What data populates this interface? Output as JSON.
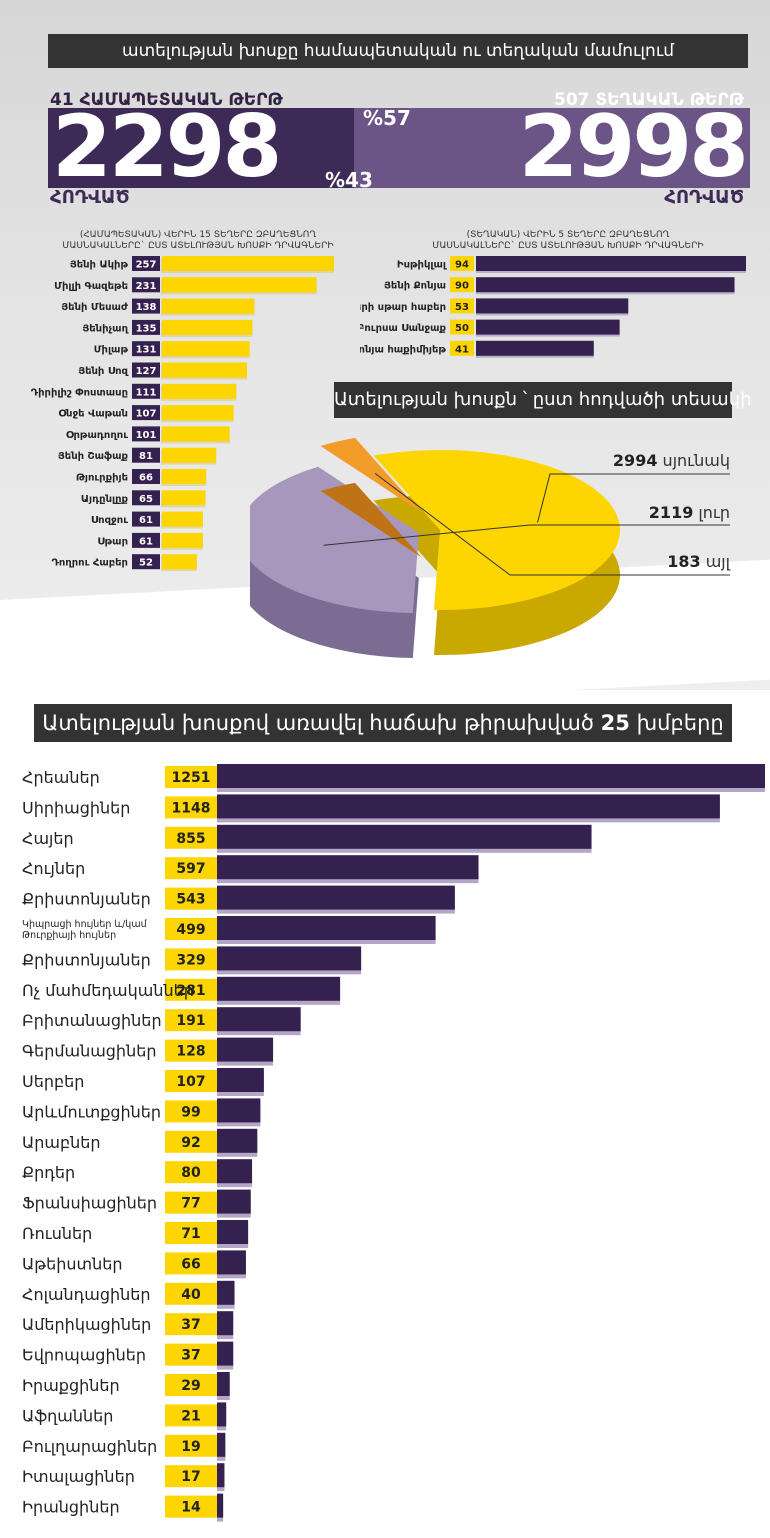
{
  "header": {
    "title": "ատելության խոսքը համապետական ու տեղական մամուլում"
  },
  "national": {
    "count_label": "41 ՀԱՄԱՊԵՏԱԿԱՆ ԹԵՐԹ",
    "total": "2298",
    "unit": "ՀՈԴՎԱԾ",
    "percent": "%43",
    "subtitle_line1": "(ՀԱՄԱՊԵՏԱԿԱՆ) ՎԵՐԻՆ 15 ՏԵՂԵՐԸ ԶԲԱՂԵՑՆՈՂ",
    "subtitle_line2": "ՄԱՍՆԱԿԱԼՆԵՐԸ` ԸՍՏ ԱՏԵԼՈՒԹՅԱՆ ԽՈՍՔԻ ԴՐՎԱԳՆԵՐԻ"
  },
  "local": {
    "count_label": "507 ՏԵՂԱԿԱՆ ԹԵՐԹ",
    "total": "2998",
    "unit": "ՀՈԴՎԱԾ",
    "percent": "%57",
    "subtitle_line1": "(ՏԵՂԱԿԱՆ) ՎԵՐԻՆ 5 ՏԵՂԵՐԸ ԶԲԱՂԵՑՆՈՂ",
    "subtitle_line2": "ՄԱՍՆԱԿԱԼՆԵՐԸ` ԸՍՏ ԱՏԵԼՈՒԹՅԱՆ ԽՈՍՔԻ ԴՐՎԱԳՆԵՐԻ"
  },
  "pie_section": {
    "title": "Ատելության խոսքն ՝ ըստ հոդվածի տեսակի"
  },
  "groups_section": {
    "title_prefix": "Ատելության խոսքով առավել հաճախ թիրախված",
    "title_number": "25",
    "title_suffix": "խմբերը"
  },
  "colors": {
    "yellow": "#fdd500",
    "purple_dark": "#35214f",
    "purple_mid": "#5b4677",
    "purple_light": "#a797bd",
    "orange": "#f39c2a",
    "banner": "#333333"
  },
  "chart_data": [
    {
      "type": "bar",
      "orientation": "horizontal",
      "categories": [
        "Յենի Ակիթ",
        "Միլլի Գազեթե",
        "Յենի Մեսաժ",
        "Յենիչաղ",
        "Միլաթ",
        "Յենի Սոզ",
        "Դիրիլիշ Փոստասը",
        "Օնջե Վաթան",
        "Օրթադողու",
        "Յենի Շաֆաք",
        "Թյուրքիյե",
        "Այդընլըք",
        "Սոզջու",
        "Սթար",
        "Դողրու Հաբեր"
      ],
      "values": [
        257,
        231,
        138,
        135,
        131,
        127,
        111,
        107,
        101,
        81,
        66,
        65,
        61,
        61,
        52
      ],
      "bar_color": "#fdd500",
      "label_bg": "#35214f"
    },
    {
      "type": "bar",
      "orientation": "horizontal",
      "categories": [
        "Իսթիկլալ",
        "Յենի Քոնյա",
        "Քայզերի սթար հաբեր",
        "Բուրսա Սանջաք",
        "Քոնյա հաքիմիյեթ"
      ],
      "values": [
        94,
        90,
        53,
        50,
        41
      ],
      "bar_color": "#35214f",
      "label_bg": "#fdd500"
    },
    {
      "type": "pie",
      "slices": [
        {
          "label": "սյունակ",
          "value": 2994,
          "color": "#fdd500"
        },
        {
          "label": "լուր",
          "value": 2119,
          "color": "#a797bd"
        },
        {
          "label": "այլ",
          "value": 183,
          "color": "#f39c2a"
        }
      ]
    },
    {
      "type": "bar",
      "orientation": "horizontal",
      "categories": [
        "Հրեաներ",
        "Սիրիացիներ",
        "Հայեր",
        "Հույներ",
        "Քրիստոնյաներ",
        "Կիպրացի հույներ և/կամ Թուրքիայի հույներ",
        "Քրիստոնյաներ",
        "Ոչ մահմեդականներ",
        "Բրիտանացիներ",
        "Գերմանացիներ",
        "Սերբեր",
        "Արևմուտքցիներ",
        "Արաբներ",
        "Քրդեր",
        "Ֆրանսիացիներ",
        "Ռուսներ",
        "Աթեիստներ",
        "Հոլանդացիներ",
        "Ամերիկացիներ",
        "Եվրոպացիներ",
        "Իրաքցիներ",
        "Աֆղաններ",
        "Բուլղարացիներ",
        "Իտալացիներ",
        "Իրանցիներ"
      ],
      "values": [
        1251,
        1148,
        855,
        597,
        543,
        499,
        329,
        281,
        191,
        128,
        107,
        99,
        92,
        80,
        77,
        71,
        66,
        40,
        37,
        37,
        29,
        21,
        19,
        17,
        14
      ],
      "bar_color": "#35214f",
      "label_bg": "#fdd500"
    }
  ]
}
